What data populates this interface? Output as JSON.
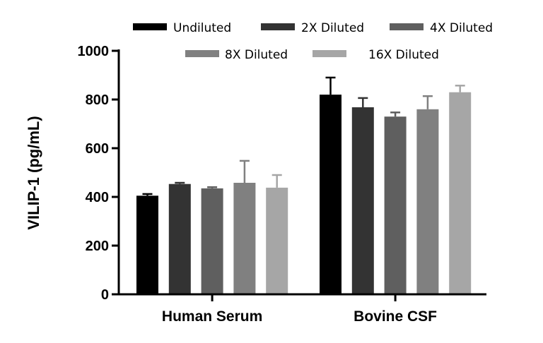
{
  "chart_data": {
    "type": "bar",
    "title": "",
    "xlabel": "",
    "ylabel": "VILIP-1 (pg/mL)",
    "ylim": [
      0,
      1000
    ],
    "yticks": [
      0,
      200,
      400,
      600,
      800,
      1000
    ],
    "grid": false,
    "legend_position": "top",
    "categories": [
      "Human Serum",
      "Bovine CSF"
    ],
    "series": [
      {
        "name": "Undiluted",
        "color": "#000000",
        "values": [
          405,
          820
        ],
        "errors": [
          7,
          70
        ]
      },
      {
        "name": "2X Diluted",
        "color": "#333333",
        "values": [
          453,
          768
        ],
        "errors": [
          5,
          38
        ]
      },
      {
        "name": "4X Diluted",
        "color": "#5f5f5f",
        "values": [
          435,
          730
        ],
        "errors": [
          5,
          17
        ]
      },
      {
        "name": "8X Diluted",
        "color": "#808080",
        "values": [
          458,
          760
        ],
        "errors": [
          90,
          54
        ]
      },
      {
        "name": "16X Diluted",
        "color": "#a6a6a6",
        "values": [
          438,
          830
        ],
        "errors": [
          52,
          27
        ]
      }
    ]
  }
}
